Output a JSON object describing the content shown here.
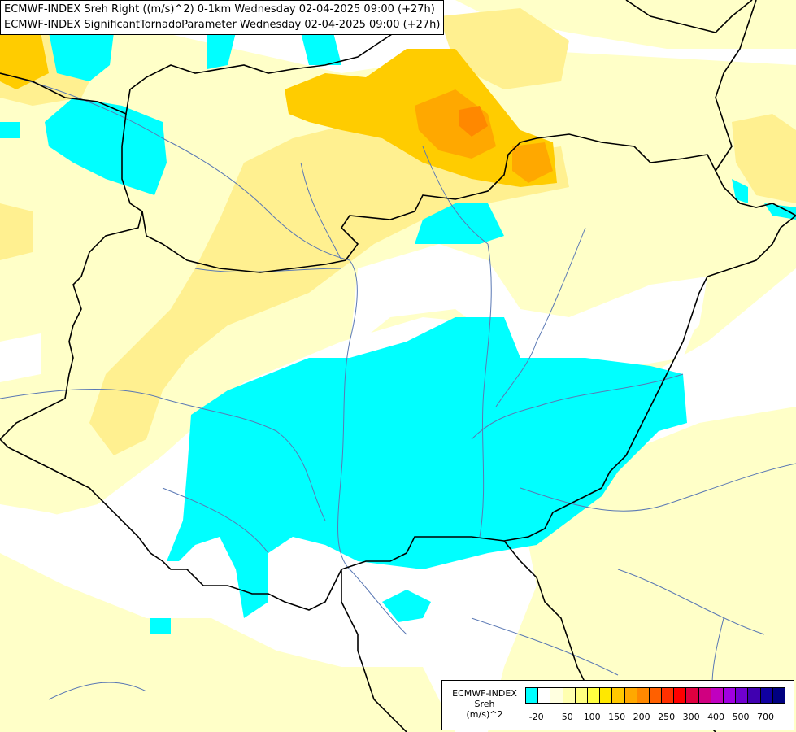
{
  "header": {
    "line1": "ECMWF-INDEX Sreh Right ((m/s)^2) 0-1km Wednesday 02-04-2025 09:00 (+27h)",
    "line2": "ECMWF-INDEX SignificantTornadoParameter Wednesday 02-04-2025 09:00 (+27h)"
  },
  "legend": {
    "line1": "ECMWF-INDEX",
    "line2": "Sreh",
    "line3": "(m/s)^2",
    "colors": [
      "#00ffff",
      "#ffffff",
      "#ffffe0",
      "#ffffb0",
      "#ffff80",
      "#ffff40",
      "#ffe800",
      "#ffc800",
      "#ffa800",
      "#ff8800",
      "#ff6000",
      "#ff3000",
      "#ff0000",
      "#e00040",
      "#d00080",
      "#c000c0",
      "#a000e0",
      "#7000d0",
      "#4000b0",
      "#1000a0",
      "#000080"
    ],
    "labels": [
      "-20",
      "50",
      "100",
      "150",
      "200",
      "250",
      "300",
      "400",
      "500",
      "700"
    ]
  }
}
